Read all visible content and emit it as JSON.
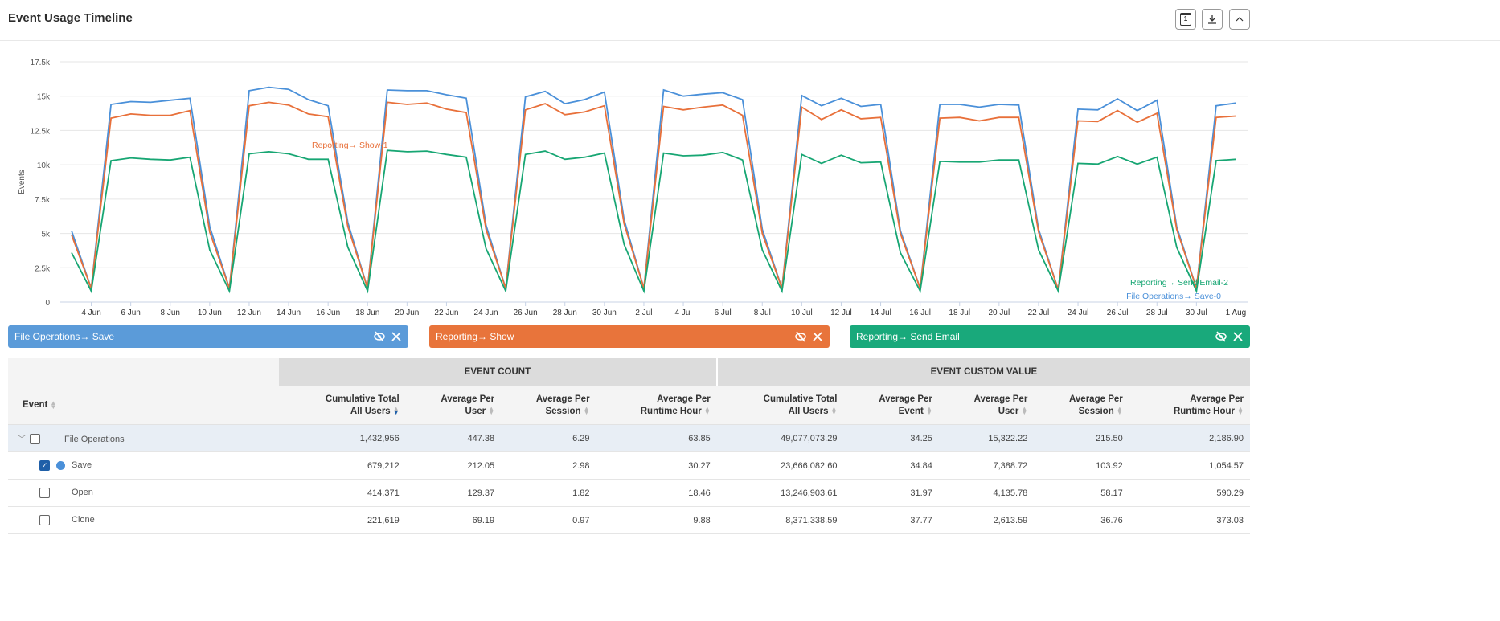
{
  "header": {
    "title": "Event Usage Timeline",
    "buttons": [
      {
        "icon": "calendar-icon",
        "glyph": "1"
      },
      {
        "icon": "download-icon"
      },
      {
        "icon": "chevron-up-icon"
      }
    ]
  },
  "chart_data": {
    "type": "line",
    "title": "",
    "xlabel": "",
    "ylabel": "Events",
    "ylim": [
      0,
      17500
    ],
    "yticks": [
      "0",
      "2.5k",
      "5k",
      "7.5k",
      "10k",
      "12.5k",
      "15k",
      "17.5k"
    ],
    "xticks": [
      "4 Jun",
      "6 Jun",
      "8 Jun",
      "10 Jun",
      "12 Jun",
      "14 Jun",
      "16 Jun",
      "18 Jun",
      "20 Jun",
      "22 Jun",
      "24 Jun",
      "26 Jun",
      "28 Jun",
      "30 Jun",
      "2 Jul",
      "4 Jul",
      "6 Jul",
      "8 Jul",
      "10 Jul",
      "12 Jul",
      "14 Jul",
      "16 Jul",
      "18 Jul",
      "20 Jul",
      "22 Jul",
      "24 Jul",
      "26 Jul",
      "28 Jul",
      "30 Jul",
      "1 Aug"
    ],
    "x_start": "3 Jun",
    "x_end": "1 Aug",
    "grid": true,
    "series": [
      {
        "name": "File Operations→ Save",
        "color": "#4a90d9",
        "label": "File Operations→ Save-0",
        "values": [
          5200,
          1000,
          14400,
          14600,
          14550,
          14700,
          14850,
          5500,
          1000,
          15400,
          15650,
          15500,
          14750,
          14300,
          5800,
          1000,
          15450,
          15400,
          15400,
          15100,
          14850,
          5600,
          1000,
          14950,
          15350,
          14450,
          14750,
          15300,
          6000,
          1000,
          15450,
          15000,
          15150,
          15250,
          14750,
          5300,
          1000,
          15050,
          14300,
          14850,
          14250,
          14400,
          5200,
          1000,
          14400,
          14400,
          14200,
          14400,
          14350,
          5300,
          900,
          14050,
          14000,
          14800,
          13950,
          14700,
          5500,
          1000,
          14300,
          14500
        ]
      },
      {
        "name": "Reporting→ Show",
        "color": "#e8703a",
        "label": "Reporting→ Show-1",
        "values": [
          4900,
          1000,
          13400,
          13700,
          13600,
          13600,
          13950,
          5100,
          1000,
          14300,
          14550,
          14350,
          13700,
          13500,
          5500,
          1000,
          14550,
          14400,
          14500,
          14050,
          13800,
          5300,
          1000,
          14000,
          14450,
          13650,
          13850,
          14300,
          5700,
          1000,
          14250,
          14000,
          14200,
          14350,
          13600,
          5000,
          1000,
          14200,
          13300,
          14000,
          13350,
          13450,
          5000,
          1000,
          13400,
          13450,
          13200,
          13450,
          13450,
          5100,
          900,
          13200,
          13150,
          13950,
          13100,
          13750,
          5300,
          1000,
          13450,
          13550
        ]
      },
      {
        "name": "Reporting→ Send Email",
        "color": "#17a673",
        "label": "Reporting→ Send Email-2",
        "values": [
          3600,
          800,
          10300,
          10500,
          10400,
          10350,
          10550,
          3800,
          800,
          10800,
          10950,
          10800,
          10400,
          10400,
          4000,
          800,
          11050,
          10950,
          11000,
          10750,
          10550,
          3900,
          800,
          10750,
          11000,
          10400,
          10550,
          10850,
          4200,
          800,
          10850,
          10650,
          10700,
          10900,
          10350,
          3800,
          800,
          10750,
          10100,
          10700,
          10150,
          10200,
          3600,
          800,
          10250,
          10200,
          10200,
          10350,
          10350,
          3800,
          800,
          10100,
          10050,
          10600,
          10050,
          10550,
          4000,
          800,
          10300,
          10400
        ]
      }
    ]
  },
  "legend_chips": [
    {
      "label": "File Operations→ Save",
      "color": "#5b9bd9"
    },
    {
      "label": "Reporting→ Show",
      "color": "#e8743b"
    },
    {
      "label": "Reporting→ Send Email",
      "color": "#19a97b"
    }
  ],
  "table": {
    "groups": [
      "EVENT COUNT",
      "EVENT CUSTOM VALUE"
    ],
    "event_header": "Event",
    "columns": [
      [
        "Cumulative Total",
        "All Users"
      ],
      [
        "Average Per",
        "User"
      ],
      [
        "Average Per",
        "Session"
      ],
      [
        "Average Per",
        "Runtime Hour"
      ],
      [
        "Cumulative Total",
        "All Users"
      ],
      [
        "Average Per",
        "Event"
      ],
      [
        "Average Per",
        "User"
      ],
      [
        "Average Per",
        "Session"
      ],
      [
        "Average Per",
        "Runtime Hour"
      ]
    ],
    "sorted_column": 0,
    "rows": [
      {
        "name": "File Operations",
        "parent": true,
        "checked": false,
        "values": [
          "1,432,956",
          "447.38",
          "6.29",
          "63.85",
          "49,077,073.29",
          "34.25",
          "15,322.22",
          "215.50",
          "2,186.90"
        ]
      },
      {
        "name": "Save",
        "parent": false,
        "checked": true,
        "color": "#4a90d9",
        "values": [
          "679,212",
          "212.05",
          "2.98",
          "30.27",
          "23,666,082.60",
          "34.84",
          "7,388.72",
          "103.92",
          "1,054.57"
        ]
      },
      {
        "name": "Open",
        "parent": false,
        "checked": false,
        "values": [
          "414,371",
          "129.37",
          "1.82",
          "18.46",
          "13,246,903.61",
          "31.97",
          "4,135.78",
          "58.17",
          "590.29"
        ]
      },
      {
        "name": "Clone",
        "parent": false,
        "checked": false,
        "values": [
          "221,619",
          "69.19",
          "0.97",
          "9.88",
          "8,371,338.59",
          "37.77",
          "2,613.59",
          "36.76",
          "373.03"
        ]
      }
    ]
  }
}
